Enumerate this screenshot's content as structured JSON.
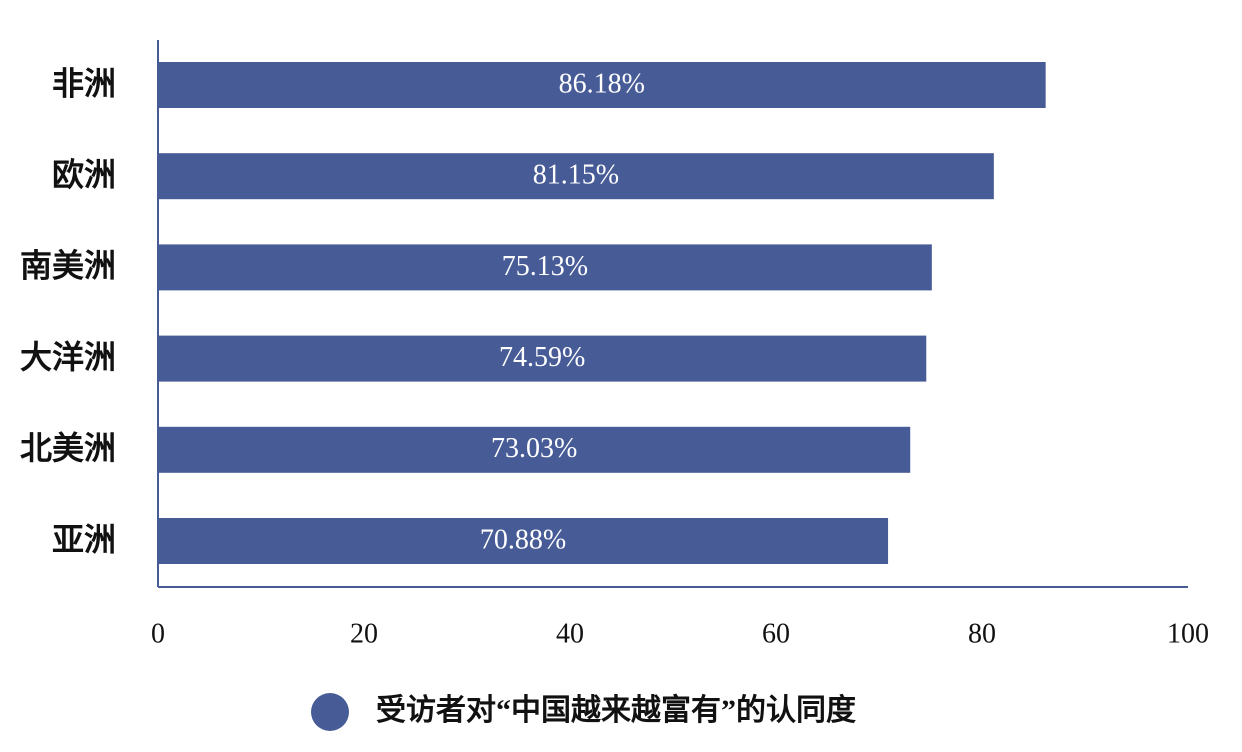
{
  "chart_data": {
    "type": "bar",
    "orientation": "horizontal",
    "categories": [
      "非洲",
      "欧洲",
      "南美洲",
      "大洋洲",
      "北美洲",
      "亚洲"
    ],
    "series": [
      {
        "name": "受访者对“中国越来越富有”的认同度",
        "color": "#475b97",
        "values": [
          86.18,
          81.15,
          75.13,
          74.59,
          73.03,
          70.88
        ],
        "value_labels": [
          "86.18%",
          "81.15%",
          "75.13%",
          "74.59%",
          "73.03%",
          "70.88%"
        ]
      }
    ],
    "xlim": [
      0,
      100
    ],
    "xticks": [
      0,
      20,
      40,
      60,
      80,
      100
    ],
    "legend": "bottom"
  }
}
